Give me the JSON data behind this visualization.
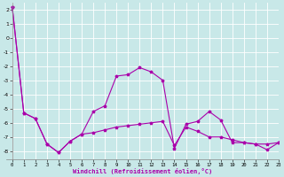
{
  "line1_x": [
    0,
    1,
    2,
    3,
    4,
    5,
    6,
    7,
    8,
    9,
    10,
    11,
    12,
    13,
    14,
    15,
    16,
    17,
    18,
    19,
    20,
    21,
    22,
    23
  ],
  "line1_y": [
    2.2,
    -5.3,
    -5.7,
    -7.5,
    -8.1,
    -7.3,
    -6.8,
    -5.2,
    -4.8,
    -2.7,
    -2.6,
    -2.1,
    -2.4,
    -3.0,
    -7.8,
    -6.1,
    -5.9,
    -5.2,
    -5.8,
    -7.4,
    -7.4,
    -7.5,
    -7.9,
    -7.4
  ],
  "line2_x": [
    0,
    1,
    2,
    3,
    4,
    5,
    6,
    7,
    8,
    9,
    10,
    11,
    12,
    13,
    14,
    15,
    16,
    17,
    18,
    19,
    20,
    21,
    22,
    23
  ],
  "line2_y": [
    2.2,
    -5.3,
    -5.7,
    -7.5,
    -8.1,
    -7.3,
    -6.8,
    -6.7,
    -6.5,
    -6.3,
    -6.2,
    -6.1,
    -6.0,
    -5.9,
    -7.6,
    -6.3,
    -6.6,
    -7.0,
    -7.0,
    -7.2,
    -7.4,
    -7.5,
    -7.5,
    -7.4
  ],
  "line_color": "#aa00aa",
  "marker": "*",
  "xlim": [
    -0.5,
    23
  ],
  "ylim": [
    -8.6,
    2.5
  ],
  "yticks": [
    2,
    1,
    0,
    -1,
    -2,
    -3,
    -4,
    -5,
    -6,
    -7,
    -8
  ],
  "xticks": [
    0,
    1,
    2,
    3,
    4,
    5,
    6,
    7,
    8,
    9,
    10,
    11,
    12,
    13,
    14,
    15,
    16,
    17,
    18,
    19,
    20,
    21,
    22,
    23
  ],
  "xlabel": "Windchill (Refroidissement éolien,°C)",
  "bg_color": "#c8e8e8",
  "grid_color": "#aad8d8",
  "spine_color": "#888888"
}
